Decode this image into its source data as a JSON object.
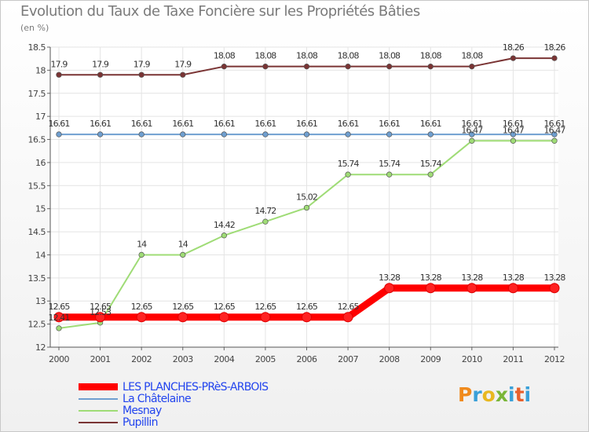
{
  "header": {
    "title": "Evolution du Taux de Taxe Foncière sur les Propriétés Bâties",
    "unit": "(en %)"
  },
  "logo": {
    "text": "Proxiti",
    "colors": [
      "#f08a1c",
      "#3aa0d8",
      "#e8b820",
      "#7ab638",
      "#3aa0d8",
      "#e8602c",
      "#3aa0d8"
    ]
  },
  "chart_data": {
    "type": "line",
    "title": "Evolution du Taux de Taxe Foncière sur les Propriétés Bâties",
    "ylabel": "(en %)",
    "xlabel": "",
    "x": [
      "2000",
      "2001",
      "2002",
      "2003",
      "2004",
      "2005",
      "2006",
      "2007",
      "2008",
      "2009",
      "2010",
      "2011",
      "2012"
    ],
    "ylim": [
      12,
      18.5
    ],
    "yticks": [
      "12",
      "12.5",
      "13",
      "13.5",
      "14",
      "14.5",
      "15",
      "15.5",
      "16",
      "16.5",
      "17",
      "17.5",
      "18",
      "18.5"
    ],
    "series": [
      {
        "name": "LES PLANCHES-PRèS-ARBOIS",
        "color": "#ff0000",
        "values": [
          12.65,
          12.65,
          12.65,
          12.65,
          12.65,
          12.65,
          12.65,
          12.65,
          13.28,
          13.28,
          13.28,
          13.28,
          13.28
        ],
        "labels": [
          "12.65",
          "12.65",
          "12.65",
          "12.65",
          "12.65",
          "12.65",
          "12.65",
          "12.65",
          "13.28",
          "13.28",
          "13.28",
          "13.28",
          "13.28"
        ]
      },
      {
        "name": "La Châtelaine",
        "color": "#6f9fd0",
        "values": [
          16.61,
          16.61,
          16.61,
          16.61,
          16.61,
          16.61,
          16.61,
          16.61,
          16.61,
          16.61,
          16.61,
          16.61,
          16.61
        ],
        "labels": [
          "16.61",
          "16.61",
          "16.61",
          "16.61",
          "16.61",
          "16.61",
          "16.61",
          "16.61",
          "16.61",
          "16.61",
          "16.61",
          "16.61",
          "16.61"
        ]
      },
      {
        "name": "Mesnay",
        "color": "#9fdc76",
        "values": [
          12.41,
          12.53,
          14,
          14,
          14.42,
          14.72,
          15.02,
          15.74,
          15.74,
          15.74,
          16.47,
          16.47,
          16.47
        ],
        "labels": [
          "12.41",
          "12.53",
          "14",
          "14",
          "14.42",
          "14.72",
          "15.02",
          "15.74",
          "15.74",
          "15.74",
          "16.47",
          "16.47",
          "16.47"
        ]
      },
      {
        "name": "Pupillin",
        "color": "#7a3434",
        "values": [
          17.9,
          17.9,
          17.9,
          17.9,
          18.08,
          18.08,
          18.08,
          18.08,
          18.08,
          18.08,
          18.08,
          18.26,
          18.26
        ],
        "labels": [
          "17.9",
          "17.9",
          "17.9",
          "17.9",
          "18.08",
          "18.08",
          "18.08",
          "18.08",
          "18.08",
          "18.08",
          "18.08",
          "18.26",
          "18.26"
        ]
      }
    ]
  }
}
